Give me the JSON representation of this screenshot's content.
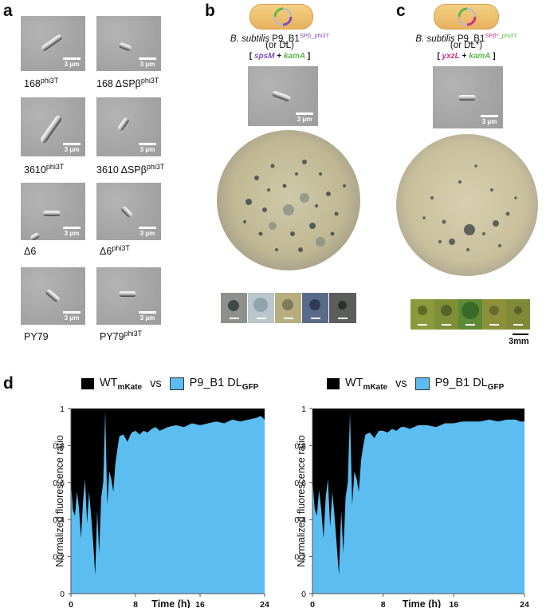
{
  "panels": {
    "a": {
      "letter": "a",
      "scale_label": "3 μm",
      "strains": [
        {
          "name": "168",
          "sup": "phi3T"
        },
        {
          "name": "168 ΔSPβ",
          "sup": "phi3T"
        },
        {
          "name": "3610",
          "sup": "phi3T"
        },
        {
          "name": "3610 ΔSPβ",
          "sup": "phi3T"
        },
        {
          "name": "Δ6",
          "sup": ""
        },
        {
          "name": "Δ6",
          "sup": "phi3T"
        },
        {
          "name": "PY79",
          "sup": ""
        },
        {
          "name": "PY79",
          "sup": "phi3T"
        }
      ]
    },
    "b": {
      "letter": "b",
      "title_italic": "B. subtilis",
      "title_main": " P9_B1",
      "title_sup": "SPβ_phi3T",
      "subtitle": "(or DL)",
      "genes_open": "[ ",
      "gene1": "spsM",
      "plus": " + ",
      "gene2": "kamA",
      "genes_close": " ]",
      "scale_label": "3 μm"
    },
    "c": {
      "letter": "c",
      "title_italic": "B. subtilis",
      "title_main": " P9_B1",
      "title_sup_a": "SPβ*",
      "title_sup_b": "_phi3T",
      "subtitle": "(or DL*)",
      "genes_open": "[ ",
      "gene1": "yxzL",
      "plus": " + ",
      "gene2": "kamA",
      "genes_close": " ]",
      "scale_label": "3 μm",
      "plaque_scale_label": "3mm"
    },
    "d": {
      "letter": "d",
      "legend": {
        "a_main": "WT",
        "a_sub": "mKate",
        "vs": "vs",
        "b_main": "P9_B1 DL",
        "b_sub": "GFP"
      },
      "ylabel": "Normalized fluorescence ratio",
      "xlabel": "Time (h)",
      "yticks": [
        "0",
        "0.2",
        "0.4",
        "0.6",
        "0.8",
        "1"
      ],
      "xticks": [
        "0",
        "8",
        "16",
        "24"
      ]
    }
  },
  "colors": {
    "gfp_blue": "#5bbdf0",
    "mkate_black": "#000000",
    "spsM_purple": "#7b4fbf",
    "kamA_green": "#5bb847",
    "yxzL_magenta": "#cc2f8d"
  },
  "chart_data": [
    {
      "type": "area",
      "title": "",
      "xlabel": "Time (h)",
      "ylabel": "Normalized fluorescence ratio",
      "xlim": [
        0,
        24
      ],
      "ylim": [
        0,
        1
      ],
      "series": [
        {
          "name": "WTmKate",
          "values": [
            1,
            1,
            1,
            1,
            1,
            1,
            1,
            1,
            1,
            1,
            1,
            1,
            1,
            1,
            1,
            1,
            1,
            1,
            1,
            1,
            1,
            1,
            1,
            1,
            1,
            1,
            1,
            1,
            1,
            1,
            1,
            1,
            1,
            1,
            1,
            1,
            1,
            1,
            1,
            1,
            1,
            1,
            1,
            1,
            1,
            1,
            1,
            1,
            1
          ]
        },
        {
          "name": "P9_B1 DLGFP",
          "x": [
            0,
            0.25,
            0.5,
            0.75,
            1,
            1.25,
            1.5,
            1.75,
            2,
            2.25,
            2.5,
            2.75,
            3,
            3.25,
            3.5,
            3.75,
            4,
            4.25,
            4.5,
            4.75,
            5,
            5.25,
            5.5,
            5.75,
            6,
            6.5,
            7,
            7.5,
            8,
            8.5,
            9,
            9.5,
            10,
            10.5,
            11,
            12,
            13,
            14,
            15,
            16,
            17,
            18,
            19,
            20,
            21,
            22,
            23,
            23.5,
            24
          ],
          "values": [
            0.6,
            0.45,
            0.42,
            0.55,
            0.46,
            0.3,
            0.5,
            0.62,
            0.38,
            0.55,
            0.42,
            0.28,
            0.1,
            0.45,
            0.22,
            0.52,
            0.6,
            0.99,
            0.48,
            0.66,
            0.62,
            0.55,
            0.7,
            0.78,
            0.85,
            0.86,
            0.82,
            0.87,
            0.88,
            0.86,
            0.88,
            0.87,
            0.89,
            0.9,
            0.88,
            0.9,
            0.91,
            0.9,
            0.92,
            0.91,
            0.92,
            0.93,
            0.92,
            0.94,
            0.93,
            0.94,
            0.95,
            0.96,
            0.94
          ]
        }
      ]
    },
    {
      "type": "area",
      "title": "",
      "xlabel": "Time (h)",
      "ylabel": "Normalized fluorescence ratio",
      "xlim": [
        0,
        24
      ],
      "ylim": [
        0,
        1
      ],
      "series": [
        {
          "name": "WTmKate",
          "values": [
            1,
            1,
            1,
            1,
            1,
            1,
            1,
            1,
            1,
            1,
            1,
            1,
            1,
            1,
            1,
            1,
            1,
            1,
            1,
            1,
            1,
            1,
            1,
            1,
            1,
            1,
            1,
            1,
            1,
            1,
            1,
            1,
            1,
            1,
            1,
            1,
            1,
            1,
            1,
            1,
            1,
            1,
            1,
            1,
            1,
            1,
            1,
            1,
            1
          ]
        },
        {
          "name": "P9_B1 DLGFP",
          "x": [
            0,
            0.25,
            0.5,
            0.75,
            1,
            1.25,
            1.5,
            1.75,
            2,
            2.25,
            2.5,
            2.75,
            3,
            3.25,
            3.5,
            3.75,
            4,
            4.25,
            4.5,
            4.75,
            5,
            5.25,
            5.5,
            5.75,
            6,
            6.5,
            7,
            7.5,
            8,
            8.5,
            9,
            9.5,
            10,
            10.5,
            11,
            12,
            13,
            14,
            15,
            16,
            17,
            18,
            19,
            20,
            21,
            22,
            23,
            23.5,
            24
          ],
          "values": [
            0.62,
            0.46,
            0.42,
            0.56,
            0.45,
            0.3,
            0.52,
            0.62,
            0.36,
            0.55,
            0.42,
            0.26,
            0.1,
            0.45,
            0.22,
            0.52,
            0.6,
            0.98,
            0.48,
            0.66,
            0.62,
            0.55,
            0.72,
            0.8,
            0.86,
            0.87,
            0.84,
            0.88,
            0.88,
            0.87,
            0.89,
            0.88,
            0.9,
            0.9,
            0.89,
            0.91,
            0.91,
            0.9,
            0.92,
            0.92,
            0.93,
            0.93,
            0.93,
            0.94,
            0.93,
            0.94,
            0.94,
            0.93,
            0.93
          ]
        }
      ]
    }
  ]
}
